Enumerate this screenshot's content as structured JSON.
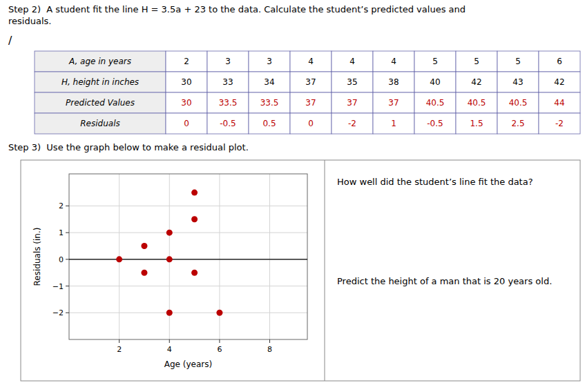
{
  "chart_data": [
    {
      "type": "table",
      "title": "Step 2)  A student fit the line H = 3.5a + 23 to the data. Calculate the student’s predicted values and residuals.",
      "annotations": [
        "/"
      ],
      "series": [
        {
          "name": "A, age in years",
          "color": "#000000",
          "values": [
            2,
            3,
            3,
            4,
            4,
            4,
            5,
            5,
            5,
            6
          ]
        },
        {
          "name": "H, height in inches",
          "color": "#000000",
          "values": [
            30,
            33,
            34,
            37,
            35,
            38,
            40,
            42,
            43,
            42
          ]
        },
        {
          "name": "Predicted Values",
          "color": "#bb0000",
          "values": [
            30,
            33.5,
            33.5,
            37,
            37,
            37,
            40.5,
            40.5,
            40.5,
            44
          ]
        },
        {
          "name": "Residuals",
          "color": "#bb0000",
          "values": [
            0,
            -0.5,
            0.5,
            0,
            -2,
            1,
            -0.5,
            1.5,
            2.5,
            -2
          ]
        }
      ]
    },
    {
      "type": "scatter",
      "title": "Step 3)  Use the graph below to make a residual plot.",
      "x": [
        2,
        3,
        3,
        4,
        4,
        4,
        5,
        5,
        5,
        6
      ],
      "values": [
        0,
        -0.5,
        0.5,
        0,
        -2,
        1,
        -0.5,
        1.5,
        2.5,
        -2
      ],
      "color": "#bb0000",
      "xlabel": "Age (years)",
      "ylabel": "Residuals (in.)",
      "xlim": [
        0,
        9.5
      ],
      "ylim": [
        -3,
        3.2
      ],
      "xticks": [
        2,
        4,
        6,
        8
      ],
      "yticks": [
        {
          "value": -2,
          "label": "−2"
        },
        {
          "value": -1,
          "label": "−1"
        },
        0,
        1,
        2
      ],
      "grid": true,
      "annotations": [
        "How well did the student’s line fit the data?",
        "Predict the height of a man that is 20 years old."
      ]
    }
  ]
}
